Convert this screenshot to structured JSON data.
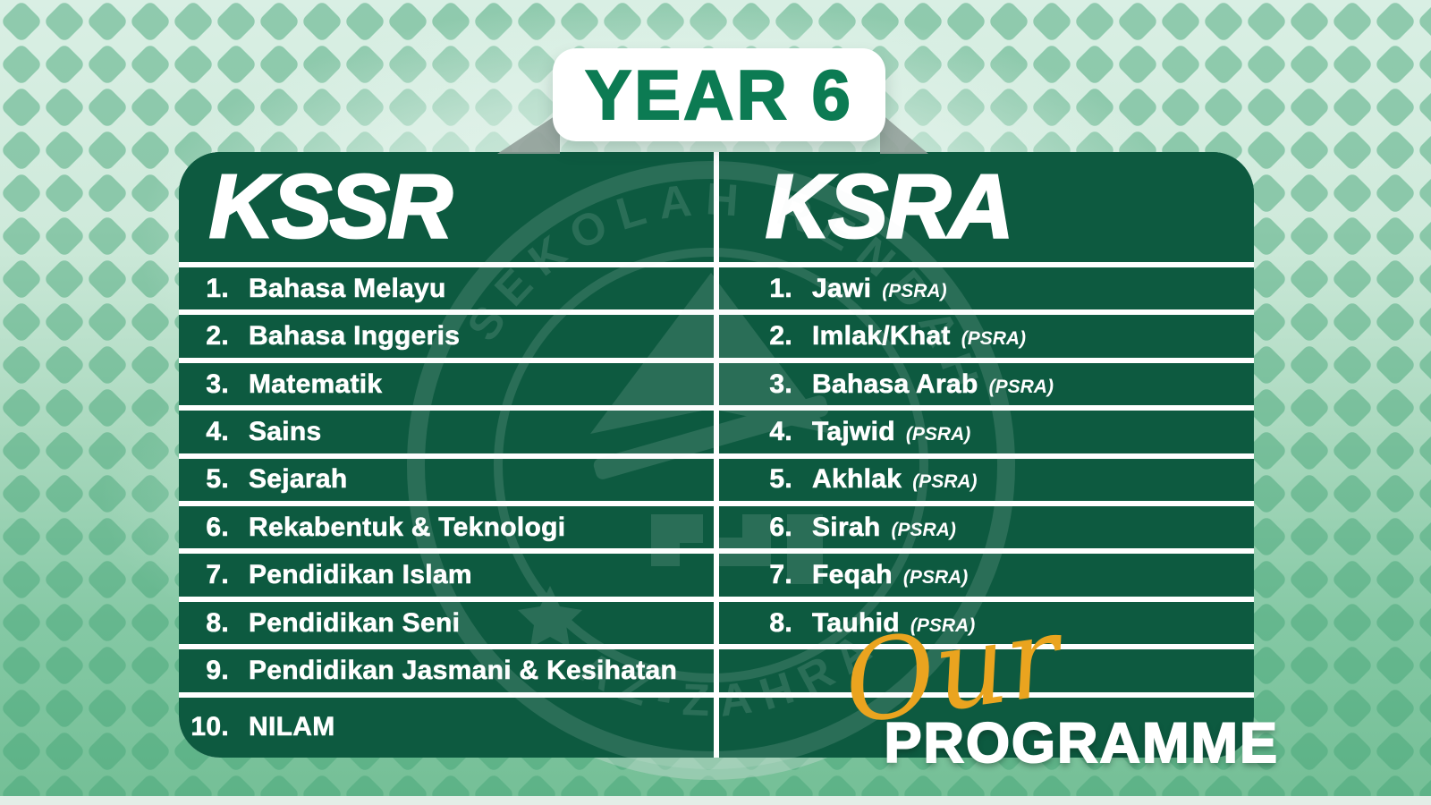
{
  "title": {
    "badge": "YEAR 6"
  },
  "table": {
    "columns": [
      {
        "header": "KSSR",
        "empty_rows": 0,
        "items": [
          {
            "num": "1.",
            "label": "Bahasa Melayu",
            "tag": ""
          },
          {
            "num": "2.",
            "label": "Bahasa Inggeris",
            "tag": ""
          },
          {
            "num": "3.",
            "label": "Matematik",
            "tag": ""
          },
          {
            "num": "4.",
            "label": "Sains",
            "tag": ""
          },
          {
            "num": "5.",
            "label": "Sejarah",
            "tag": ""
          },
          {
            "num": "6.",
            "label": "Rekabentuk & Teknologi",
            "tag": ""
          },
          {
            "num": "7.",
            "label": "Pendidikan Islam",
            "tag": ""
          },
          {
            "num": "8.",
            "label": "Pendidikan Seni",
            "tag": ""
          },
          {
            "num": "9.",
            "label": "Pendidikan Jasmani & Kesihatan",
            "tag": ""
          },
          {
            "num": "10.",
            "label": "NILAM",
            "tag": ""
          }
        ]
      },
      {
        "header": "KSRA",
        "empty_rows": 2,
        "items": [
          {
            "num": "1.",
            "label": "Jawi",
            "tag": "(PSRA)"
          },
          {
            "num": "2.",
            "label": "Imlak/Khat",
            "tag": "(PSRA)"
          },
          {
            "num": "3.",
            "label": "Bahasa Arab",
            "tag": "(PSRA)"
          },
          {
            "num": "4.",
            "label": "Tajwid",
            "tag": "(PSRA)"
          },
          {
            "num": "5.",
            "label": "Akhlak",
            "tag": "(PSRA)"
          },
          {
            "num": "6.",
            "label": "Sirah",
            "tag": "(PSRA)"
          },
          {
            "num": "7.",
            "label": "Feqah",
            "tag": "(PSRA)"
          },
          {
            "num": "8.",
            "label": "Tauhid",
            "tag": "(PSRA)"
          }
        ]
      }
    ]
  },
  "footer": {
    "script_word": "Our",
    "main_word": "PROGRAMME"
  },
  "watermark": {
    "arc_top": "SEKOLAH RENDAH",
    "arc_bottom": "AZ-ZAHRA"
  },
  "colors": {
    "panel_green": "#0d5a40",
    "title_green": "#0c7b53",
    "accent_gold": "#eaa41f",
    "background_light": "#d9efe4",
    "background_deep": "#74bf96",
    "pattern_diamond": "#45a577",
    "line_white": "#ffffff"
  }
}
